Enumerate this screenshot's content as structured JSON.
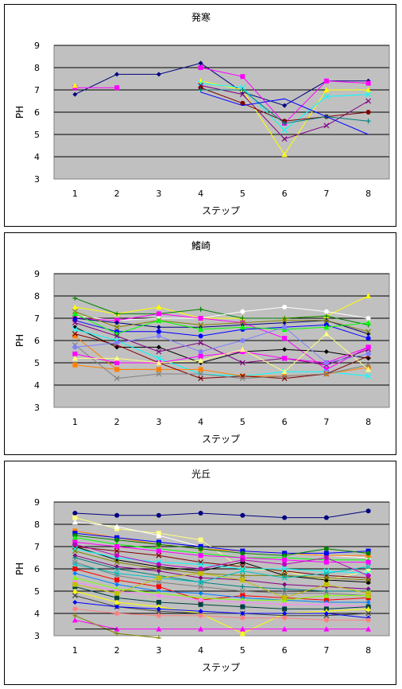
{
  "chart_data": [
    {
      "type": "line",
      "title": "発寒",
      "xlabel": "ステップ",
      "ylabel": "PH",
      "ylim": [
        3,
        9
      ],
      "yticks": [
        3,
        4,
        5,
        6,
        7,
        8,
        9
      ],
      "categories": [
        "1",
        "2",
        "3",
        "4",
        "5",
        "6",
        "7",
        "8"
      ],
      "grid": true,
      "legend": "none",
      "series": [
        {
          "color": "#000080",
          "marker": "diamond",
          "values": [
            6.8,
            7.7,
            7.7,
            8.2,
            6.9,
            6.3,
            7.4,
            7.4
          ]
        },
        {
          "color": "#ff00ff",
          "marker": "square",
          "values": [
            7.1,
            7.1,
            null,
            8.0,
            7.6,
            5.5,
            7.4,
            7.3
          ]
        },
        {
          "color": "#ffff00",
          "marker": "triangle",
          "values": [
            7.2,
            null,
            null,
            7.4,
            7.0,
            4.1,
            7.0,
            7.0
          ]
        },
        {
          "color": "#00ffff",
          "marker": "x",
          "values": [
            null,
            null,
            null,
            7.3,
            7.1,
            5.2,
            6.7,
            6.8
          ]
        },
        {
          "color": "#800080",
          "marker": "x",
          "values": [
            null,
            null,
            null,
            7.2,
            6.8,
            4.8,
            5.4,
            6.5
          ]
        },
        {
          "color": "#800000",
          "marker": "circle",
          "values": [
            null,
            null,
            null,
            7.1,
            6.4,
            5.6,
            5.8,
            6.0
          ]
        },
        {
          "color": "#008080",
          "marker": "plus",
          "values": [
            null,
            null,
            null,
            7.0,
            7.0,
            5.5,
            5.8,
            5.6
          ]
        },
        {
          "color": "#0000ff",
          "marker": "line",
          "values": [
            null,
            null,
            null,
            6.9,
            6.3,
            6.6,
            5.8,
            5.0
          ]
        }
      ]
    },
    {
      "type": "line",
      "title": "鰭崎",
      "xlabel": "ステップ",
      "ylabel": "PH",
      "ylim": [
        3,
        9
      ],
      "yticks": [
        3,
        4,
        5,
        6,
        7,
        8,
        9
      ],
      "categories": [
        "1",
        "2",
        "3",
        "4",
        "5",
        "6",
        "7",
        "8"
      ],
      "grid": true,
      "legend": "none",
      "series": [
        {
          "color": "#ffff00",
          "marker": "triangle",
          "values": [
            7.5,
            7.2,
            7.5,
            7.0,
            7.0,
            7.0,
            7.1,
            8.0
          ]
        },
        {
          "color": "#008000",
          "marker": "plus",
          "values": [
            7.9,
            7.2,
            7.2,
            7.4,
            7.0,
            7.0,
            7.1,
            6.7
          ]
        },
        {
          "color": "#ffffff",
          "marker": "circle",
          "values": [
            7.1,
            6.9,
            7.0,
            7.0,
            7.3,
            7.5,
            7.3,
            7.0
          ]
        },
        {
          "color": "#ff00ff",
          "marker": "square",
          "values": [
            7.0,
            6.9,
            7.2,
            7.0,
            6.8,
            6.1,
            4.7,
            5.7
          ]
        },
        {
          "color": "#000080",
          "marker": "diamond",
          "values": [
            7.0,
            6.8,
            6.6,
            6.6,
            6.7,
            6.8,
            6.9,
            6.3
          ]
        },
        {
          "color": "#808000",
          "marker": "x",
          "values": [
            7.3,
            6.6,
            6.9,
            6.7,
            6.8,
            6.9,
            6.9,
            6.4
          ]
        },
        {
          "color": "#0000ff",
          "marker": "circle",
          "values": [
            6.9,
            6.4,
            6.4,
            6.2,
            6.5,
            6.6,
            6.7,
            6.1
          ]
        },
        {
          "color": "#00ff00",
          "marker": "triangle",
          "values": [
            7.2,
            6.3,
            6.9,
            6.5,
            6.6,
            6.5,
            6.6,
            6.8
          ]
        },
        {
          "color": "#000000",
          "marker": "diamond",
          "values": [
            6.6,
            5.7,
            5.7,
            5.0,
            5.5,
            5.6,
            5.5,
            5.2
          ]
        },
        {
          "color": "#800080",
          "marker": "x",
          "values": [
            6.8,
            6.2,
            5.5,
            5.9,
            5.0,
            5.2,
            4.9,
            5.6
          ]
        },
        {
          "color": "#00ffff",
          "marker": "x",
          "values": [
            6.5,
            6.0,
            5.2,
            4.5,
            4.4,
            4.6,
            4.6,
            4.4
          ]
        },
        {
          "color": "#ff8000",
          "marker": "square",
          "values": [
            6.2,
            4.7,
            4.7,
            4.7,
            4.4,
            4.4,
            4.5,
            4.8
          ]
        },
        {
          "color": "#ff8000",
          "marker": "square",
          "values": [
            4.9,
            4.7,
            4.7,
            null,
            null,
            null,
            null,
            null
          ]
        },
        {
          "color": "#800000",
          "marker": "x",
          "values": [
            6.3,
            5.8,
            5.0,
            4.3,
            4.4,
            4.3,
            4.5,
            5.3
          ]
        },
        {
          "color": "#808080",
          "marker": "x",
          "values": [
            5.8,
            4.3,
            4.5,
            4.5,
            4.3,
            4.4,
            4.5,
            4.9
          ]
        },
        {
          "color": "#ff00ff",
          "marker": "square",
          "values": [
            5.4,
            5.0,
            5.0,
            5.3,
            5.5,
            5.2,
            5.0,
            5.7
          ]
        },
        {
          "color": "#ffff80",
          "marker": "triangle",
          "values": [
            5.2,
            5.2,
            5.0,
            5.1,
            5.6,
            4.6,
            6.3,
            4.7
          ]
        },
        {
          "color": "#8080ff",
          "marker": "circle",
          "values": [
            5.7,
            5.9,
            6.2,
            5.5,
            6.0,
            6.6,
            5.0,
            5.4
          ]
        }
      ]
    },
    {
      "type": "line",
      "title": "光丘",
      "xlabel": "ステップ",
      "ylabel": "PH",
      "ylim": [
        3,
        9
      ],
      "yticks": [
        3,
        4,
        5,
        6,
        7,
        8,
        9
      ],
      "categories": [
        "1",
        "2",
        "3",
        "4",
        "5",
        "6",
        "7",
        "8"
      ],
      "grid": true,
      "legend": "none",
      "series": [
        {
          "color": "#000080",
          "marker": "circle",
          "values": [
            8.5,
            8.4,
            8.4,
            8.5,
            8.4,
            8.3,
            8.3,
            8.6
          ]
        },
        {
          "color": "#ffff80",
          "marker": "square",
          "values": [
            8.3,
            7.8,
            7.6,
            7.3,
            6.0,
            5.9,
            5.5,
            5.9
          ]
        },
        {
          "color": "#ffffff",
          "marker": "triangle",
          "values": [
            8.1,
            7.9,
            7.5,
            7.0,
            6.8,
            6.7,
            6.6,
            6.5
          ]
        },
        {
          "color": "#ff8000",
          "marker": "square",
          "values": [
            7.7,
            7.4,
            7.1,
            6.9,
            6.8,
            6.7,
            6.6,
            6.6
          ]
        },
        {
          "color": "#0000ff",
          "marker": "square",
          "values": [
            7.6,
            7.4,
            7.2,
            7.0,
            6.8,
            6.7,
            6.7,
            6.8
          ]
        },
        {
          "color": "#008000",
          "marker": "circle",
          "values": [
            7.5,
            7.3,
            7.1,
            6.9,
            6.7,
            6.6,
            6.9,
            6.7
          ]
        },
        {
          "color": "#00ff00",
          "marker": "triangle",
          "values": [
            7.4,
            7.1,
            6.9,
            6.7,
            6.5,
            6.5,
            6.4,
            6.4
          ]
        },
        {
          "color": "#ff00ff",
          "marker": "square",
          "values": [
            7.2,
            7.0,
            6.8,
            6.6,
            6.5,
            6.4,
            6.3,
            6.3
          ]
        },
        {
          "color": "#000000",
          "marker": "circle",
          "values": [
            7.0,
            6.4,
            6.1,
            5.9,
            6.3,
            5.7,
            5.5,
            5.4
          ]
        },
        {
          "color": "#800000",
          "marker": "x",
          "values": [
            7.0,
            6.8,
            6.6,
            6.3,
            6.1,
            5.9,
            5.7,
            5.6
          ]
        },
        {
          "color": "#00ffff",
          "marker": "x",
          "values": [
            6.9,
            6.5,
            6.3,
            6.2,
            6.0,
            6.0,
            5.9,
            5.8
          ]
        },
        {
          "color": "#808000",
          "marker": "x",
          "values": [
            6.8,
            6.3,
            6.0,
            5.8,
            5.7,
            5.7,
            5.6,
            5.5
          ]
        },
        {
          "color": "#800080",
          "marker": "diamond",
          "values": [
            6.6,
            6.1,
            5.9,
            5.6,
            5.5,
            5.3,
            5.2,
            5.1
          ]
        },
        {
          "color": "#008080",
          "marker": "plus",
          "values": [
            6.5,
            6.0,
            5.7,
            5.4,
            5.2,
            5.1,
            5.0,
            5.0
          ]
        },
        {
          "color": "#808080",
          "marker": "x",
          "values": [
            6.3,
            5.7,
            5.4,
            5.2,
            5.0,
            4.9,
            4.9,
            4.8
          ]
        },
        {
          "color": "#ff0000",
          "marker": "square",
          "values": [
            6.0,
            5.5,
            5.2,
            4.6,
            4.8,
            4.7,
            4.6,
            4.7
          ]
        },
        {
          "color": "#0080ff",
          "marker": "diamond",
          "values": [
            5.8,
            5.3,
            5.0,
            4.9,
            4.7,
            4.6,
            4.5,
            4.5
          ]
        },
        {
          "color": "#80ff00",
          "marker": "triangle",
          "values": [
            5.6,
            5.1,
            4.9,
            4.7,
            4.6,
            4.6,
            4.8,
            4.8
          ]
        },
        {
          "color": "#ff80ff",
          "marker": "circle",
          "values": [
            5.4,
            5.0,
            4.8,
            4.6,
            4.5,
            4.4,
            4.4,
            4.3
          ]
        },
        {
          "color": "#004040",
          "marker": "square",
          "values": [
            5.2,
            4.7,
            4.5,
            4.4,
            4.3,
            4.2,
            4.2,
            4.3
          ]
        },
        {
          "color": "#ffff00",
          "marker": "triangle",
          "values": [
            5.0,
            4.5,
            4.3,
            4.0,
            3.1,
            4.0,
            4.1,
            4.2
          ]
        },
        {
          "color": "#404040",
          "marker": "x",
          "values": [
            4.8,
            4.3,
            4.1,
            4.0,
            4.0,
            3.9,
            3.9,
            4.0
          ]
        },
        {
          "color": "#0000ff",
          "marker": "diamond",
          "values": [
            4.5,
            4.3,
            4.2,
            4.1,
            4.0,
            4.0,
            4.0,
            3.8
          ]
        },
        {
          "color": "#ff8080",
          "marker": "circle",
          "values": [
            4.2,
            4.0,
            3.9,
            3.9,
            3.8,
            3.8,
            3.7,
            3.7
          ]
        },
        {
          "color": "#ff00ff",
          "marker": "triangle",
          "values": [
            3.7,
            3.3,
            3.3,
            3.3,
            3.3,
            3.3,
            3.3,
            3.3
          ]
        },
        {
          "color": "#808000",
          "marker": "plus",
          "values": [
            3.9,
            3.1,
            2.9,
            null,
            null,
            null,
            null,
            null
          ]
        },
        {
          "color": "#000000",
          "marker": "line",
          "values": [
            3.3,
            3.3,
            null,
            null,
            null,
            null,
            null,
            null
          ]
        },
        {
          "color": "#00c0c0",
          "marker": "x",
          "values": [
            6.2,
            5.8,
            5.6,
            5.4,
            5.9,
            5.6,
            5.8,
            6.1
          ]
        },
        {
          "color": "#c000c0",
          "marker": "circle",
          "values": [
            7.1,
            6.6,
            6.2,
            6.0,
            6.4,
            6.2,
            6.5,
            5.7
          ]
        },
        {
          "color": "#c0c000",
          "marker": "square",
          "values": [
            5.3,
            4.9,
            5.6,
            5.8,
            5.5,
            4.7,
            5.3,
            4.9
          ]
        }
      ]
    }
  ]
}
